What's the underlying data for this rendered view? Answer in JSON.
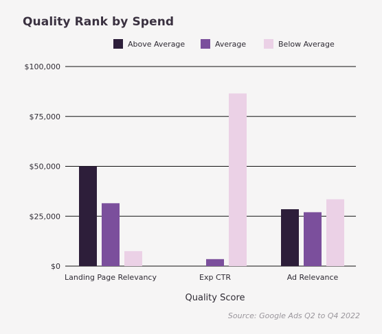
{
  "title": "Quality Rank by Spend",
  "source": "Source: Google Ads Q2 to Q4 2022",
  "colors": {
    "above_average": "#2d1e3a",
    "average": "#7b4f9c",
    "below_average": "#ebd1e6",
    "grid": "#111111",
    "text": "#2e2a33"
  },
  "chart_data": {
    "type": "bar",
    "title": "Quality Rank by Spend",
    "xlabel": "Quality Score",
    "ylabel": "",
    "categories": [
      "Landing Page Relevancy",
      "Exp CTR",
      "Ad Relevance"
    ],
    "series": [
      {
        "name": "Above Average",
        "color": "#2d1e3a",
        "values": [
          50000,
          0,
          28500
        ]
      },
      {
        "name": "Average",
        "color": "#7b4f9c",
        "values": [
          31500,
          3500,
          27000
        ]
      },
      {
        "name": "Below Average",
        "color": "#ebd1e6",
        "values": [
          7500,
          86500,
          33500
        ]
      }
    ],
    "ylim": [
      0,
      100000
    ],
    "yticks": [
      0,
      25000,
      50000,
      75000,
      100000
    ],
    "ytick_labels": [
      "$0",
      "$25,000",
      "$50,000",
      "$75,000",
      "$100,000"
    ],
    "grid": true,
    "legend_position": "top"
  }
}
